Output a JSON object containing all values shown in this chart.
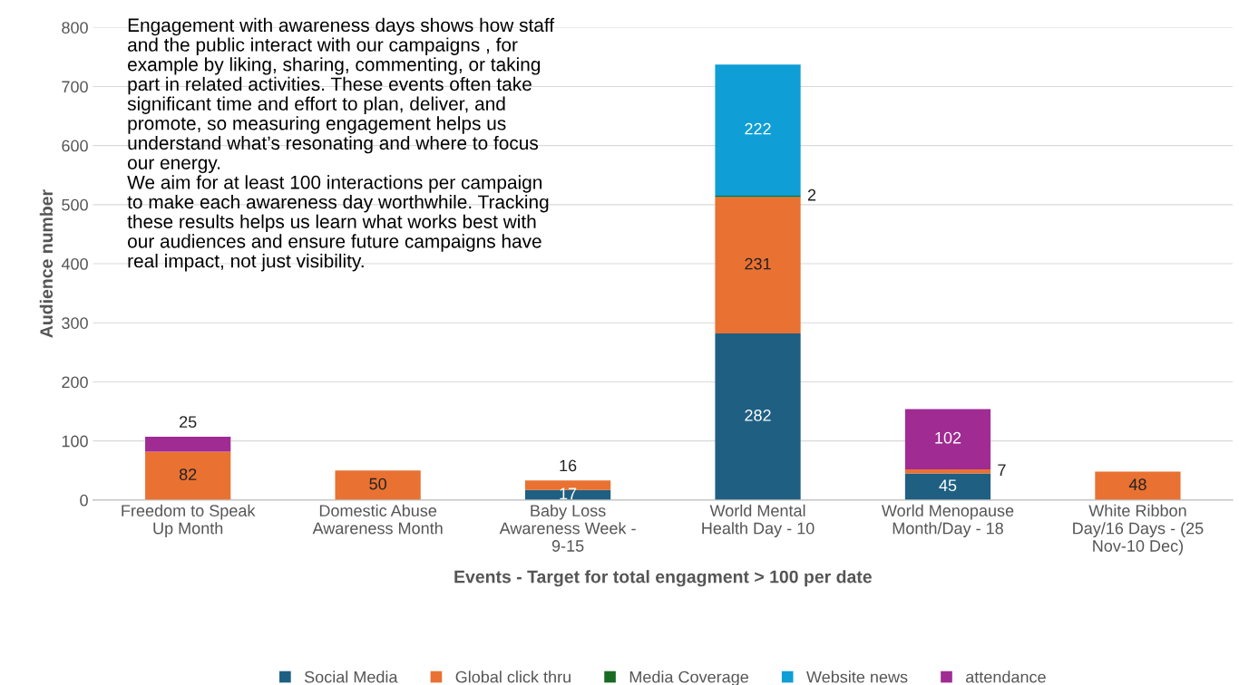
{
  "chart_data": {
    "type": "bar",
    "stacked": true,
    "categories": [
      "Freedom to Speak\nUp Month",
      "Domestic Abuse\nAwareness Month",
      "Baby Loss\nAwareness Week -\n9-15",
      "World Mental\nHealth Day - 10",
      "World Menopause\nMonth/Day - 18",
      "White Ribbon\nDay/16 Days - (25\nNov-10 Dec)"
    ],
    "series": [
      {
        "name": "Social Media",
        "color": "#1f5f82",
        "values": [
          0,
          0,
          17,
          282,
          45,
          0
        ],
        "value_labels": [
          null,
          null,
          "17",
          "282",
          "45",
          null
        ]
      },
      {
        "name": "Global click thru",
        "color": "#e97132",
        "values": [
          82,
          50,
          16,
          231,
          7,
          48
        ],
        "value_labels": [
          "82",
          "50",
          "16",
          "231",
          "7",
          "48"
        ]
      },
      {
        "name": "Media Coverage",
        "color": "#196b24",
        "values": [
          0,
          0,
          0,
          2,
          0,
          0
        ],
        "value_labels": [
          null,
          null,
          null,
          "2",
          null,
          null
        ]
      },
      {
        "name": "Website news",
        "color": "#0f9ed5",
        "values": [
          0,
          0,
          0,
          222,
          0,
          0
        ],
        "value_labels": [
          null,
          null,
          null,
          "222",
          null,
          null
        ]
      },
      {
        "name": "attendance",
        "color": "#a02b93",
        "values": [
          25,
          0,
          0,
          0,
          102,
          0
        ],
        "value_labels": [
          "25",
          null,
          null,
          null,
          "102",
          null
        ]
      }
    ],
    "xlabel": "Events - Target for total engagment > 100 per date",
    "ylabel": "Audience number",
    "ylim": [
      0,
      800
    ],
    "yticks": [
      0,
      100,
      200,
      300,
      400,
      500,
      600,
      700,
      800
    ],
    "grid": "y",
    "legend": "bottom",
    "annotations": [
      "Engagement with awareness days shows how staff\nand the public interact with our campaigns , for\nexample by liking, sharing, commenting, or taking\npart in related activities. These events often take\nsignificant time and effort to plan, deliver, and\npromote, so measuring engagement helps us\nunderstand what’s resonating and where to focus\nour energy.\nWe aim for at least 100 interactions per campaign\nto make each awareness day worthwhile. Tracking\nthese results helps us learn what works best with\nour audiences and ensure future campaigns have\nreal impact, not just visibility."
    ]
  }
}
